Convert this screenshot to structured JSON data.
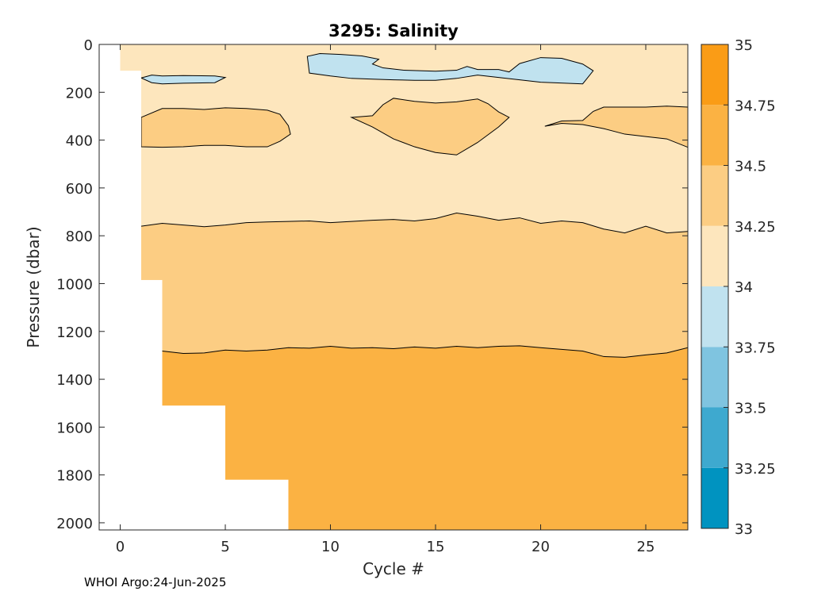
{
  "footer": {
    "text": "WHOI Argo:24-Jun-2025"
  },
  "chart_data": {
    "type": "contourf",
    "title": "3295:  Salinity",
    "xlabel": "Cycle #",
    "ylabel": "Pressure (dbar)",
    "xlim": [
      -1,
      27
    ],
    "ylim": [
      2030,
      0
    ],
    "y_reversed": true,
    "xticks": [
      0,
      5,
      10,
      15,
      20,
      25
    ],
    "yticks": [
      0,
      200,
      400,
      600,
      800,
      1000,
      1200,
      1400,
      1600,
      1800,
      2000
    ],
    "colorbar": {
      "levels": [
        33,
        33.25,
        33.5,
        33.75,
        34,
        34.25,
        34.5,
        34.75,
        35
      ],
      "tick_labels": [
        "33",
        "33.25",
        "33.5",
        "33.75",
        "34",
        "34.25",
        "34.5",
        "34.75",
        "35"
      ],
      "colors": [
        "#0093c0",
        "#3ea9cf",
        "#7fc4e0",
        "#c0e2ef",
        "#fde6bd",
        "#fccd83",
        "#fbb243",
        "#fa9c16"
      ]
    },
    "profile_max_pressure": [
      {
        "x_from": 0,
        "x_to": 1,
        "p_max": 110
      },
      {
        "x_from": 1,
        "x_to": 2,
        "p_max": 985
      },
      {
        "x_from": 2,
        "x_to": 5,
        "p_max": 1510
      },
      {
        "x_from": 5,
        "x_to": 8,
        "p_max": 1820
      },
      {
        "x_from": 8,
        "x_to": 27,
        "p_max": 2030
      }
    ],
    "contours": [
      {
        "level": 34.25,
        "interpretation": "boundary between 34-34.25 (upper) and 34.25-34.5 (lower)",
        "x": [
          1,
          2,
          3,
          4,
          5,
          6,
          7,
          8,
          9,
          10,
          11,
          12,
          13,
          14,
          15,
          16,
          17,
          18,
          19,
          20,
          21,
          22,
          23,
          24,
          25,
          26,
          27
        ],
        "p": [
          760,
          748,
          755,
          762,
          755,
          745,
          742,
          740,
          738,
          745,
          740,
          735,
          732,
          738,
          728,
          705,
          718,
          735,
          725,
          748,
          738,
          745,
          772,
          788,
          760,
          788,
          782
        ]
      },
      {
        "level": 34.5,
        "interpretation": "boundary between 34.25-34.5 (upper) and 34.5-34.75 (lower)",
        "x": [
          2,
          3,
          4,
          5,
          6,
          7,
          8,
          9,
          10,
          11,
          12,
          13,
          14,
          15,
          16,
          17,
          18,
          19,
          20,
          21,
          22,
          23,
          24,
          25,
          26,
          27
        ],
        "p": [
          1282,
          1292,
          1290,
          1278,
          1282,
          1278,
          1268,
          1270,
          1262,
          1270,
          1268,
          1272,
          1265,
          1270,
          1262,
          1268,
          1262,
          1260,
          1268,
          1275,
          1282,
          1305,
          1308,
          1298,
          1290,
          1268
        ]
      }
    ],
    "patches": [
      {
        "salinity_band": "34.25-34.5",
        "points": [
          [
            1,
            305
          ],
          [
            2,
            268
          ],
          [
            3,
            268
          ],
          [
            4,
            272
          ],
          [
            5,
            265
          ],
          [
            6,
            268
          ],
          [
            7,
            275
          ],
          [
            7.6,
            292
          ],
          [
            8,
            340
          ],
          [
            8.1,
            375
          ],
          [
            7.6,
            405
          ],
          [
            7,
            428
          ],
          [
            6,
            428
          ],
          [
            5,
            422
          ],
          [
            4,
            422
          ],
          [
            3,
            428
          ],
          [
            2,
            430
          ],
          [
            1,
            428
          ]
        ]
      },
      {
        "salinity_band": "34.25-34.5",
        "points": [
          [
            11,
            305
          ],
          [
            12,
            298
          ],
          [
            12.5,
            252
          ],
          [
            13,
            225
          ],
          [
            14,
            238
          ],
          [
            15,
            245
          ],
          [
            16,
            240
          ],
          [
            17,
            228
          ],
          [
            17.5,
            248
          ],
          [
            18,
            282
          ],
          [
            18.5,
            305
          ],
          [
            18,
            345
          ],
          [
            17,
            410
          ],
          [
            16,
            462
          ],
          [
            15,
            452
          ],
          [
            14,
            428
          ],
          [
            13,
            395
          ],
          [
            12,
            345
          ]
        ]
      },
      {
        "salinity_band": "34.25-34.5",
        "points": [
          [
            20.2,
            342
          ],
          [
            21,
            320
          ],
          [
            22,
            318
          ],
          [
            22.5,
            280
          ],
          [
            23,
            262
          ],
          [
            24,
            262
          ],
          [
            25,
            262
          ],
          [
            26,
            258
          ],
          [
            27,
            262
          ],
          [
            27,
            430
          ],
          [
            26,
            395
          ],
          [
            25,
            385
          ],
          [
            24,
            375
          ],
          [
            23,
            352
          ],
          [
            22,
            335
          ],
          [
            21,
            330
          ]
        ]
      },
      {
        "salinity_band": "33.75-34",
        "points": [
          [
            8.9,
            50
          ],
          [
            9.5,
            38
          ],
          [
            10.5,
            42
          ],
          [
            11.5,
            48
          ],
          [
            12.3,
            62
          ],
          [
            12,
            82
          ],
          [
            12.5,
            98
          ],
          [
            13.5,
            108
          ],
          [
            15,
            112
          ],
          [
            16,
            108
          ],
          [
            16.5,
            92
          ],
          [
            17,
            105
          ],
          [
            18,
            105
          ],
          [
            18.5,
            115
          ],
          [
            19,
            80
          ],
          [
            20,
            55
          ],
          [
            21,
            58
          ],
          [
            22,
            82
          ],
          [
            22.5,
            110
          ],
          [
            22,
            165
          ],
          [
            20,
            158
          ],
          [
            19,
            148
          ],
          [
            18,
            138
          ],
          [
            17,
            128
          ],
          [
            16,
            142
          ],
          [
            15,
            150
          ],
          [
            14,
            150
          ],
          [
            13,
            148
          ],
          [
            12,
            145
          ],
          [
            11,
            142
          ],
          [
            10,
            132
          ],
          [
            9,
            120
          ]
        ]
      },
      {
        "salinity_band": "33.75-34",
        "points": [
          [
            1,
            140
          ],
          [
            1.5,
            128
          ],
          [
            2,
            132
          ],
          [
            3,
            130
          ],
          [
            4.5,
            132
          ],
          [
            5,
            138
          ],
          [
            4.5,
            160
          ],
          [
            3,
            162
          ],
          [
            2,
            165
          ],
          [
            1.5,
            160
          ]
        ]
      }
    ]
  }
}
